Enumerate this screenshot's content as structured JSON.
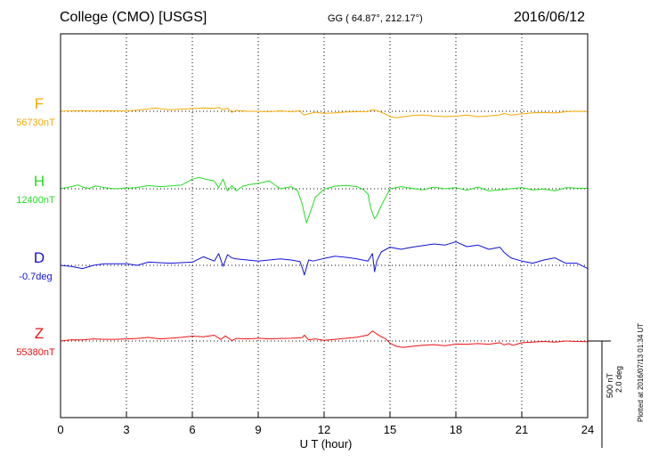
{
  "header": {
    "station": "College (CMO)  [USGS]",
    "geo": "GG ( 64.87°, 212.17°)",
    "date": "2016/06/12"
  },
  "side": {
    "scale_nt": "500 nT",
    "scale_deg": "2.0 deg",
    "plotted": "Plotted at 2016/07/13 01:34 UT"
  },
  "chart_data": {
    "type": "line",
    "xlabel": "U T (hour)",
    "xlim": [
      0,
      24
    ],
    "xticks": [
      0,
      3,
      6,
      9,
      12,
      15,
      18,
      21,
      24
    ],
    "grid": true,
    "series": [
      {
        "name": "F",
        "baseline_label": "56730nT",
        "color": "#f5a800",
        "baseline": 56730,
        "unit": "nT",
        "x": [
          0,
          0.5,
          1,
          1.5,
          2,
          2.5,
          3,
          3.5,
          4,
          4.3,
          4.6,
          5,
          5.5,
          6,
          6.5,
          7,
          7.2,
          7.4,
          7.6,
          7.8,
          8,
          8.5,
          9,
          9.5,
          10,
          10.5,
          10.9,
          11,
          11.1,
          11.3,
          11.6,
          12,
          12.5,
          13,
          13.5,
          14,
          14.2,
          14.3,
          14.5,
          14.8,
          15,
          15.3,
          15.6,
          16,
          16.5,
          17,
          17.5,
          18,
          18.5,
          19,
          19.5,
          20,
          20.2,
          20.5,
          21,
          21.5,
          22,
          22.5,
          23,
          23.5,
          24
        ],
        "values": [
          56730,
          56732,
          56733,
          56731,
          56733,
          56732,
          56731,
          56735,
          56741,
          56746,
          56741,
          56737,
          56740,
          56743,
          56745,
          56744,
          56748,
          56737,
          56745,
          56725,
          56734,
          56730,
          56730,
          56728,
          56732,
          56728,
          56733,
          56720,
          56712,
          56718,
          56726,
          56720,
          56723,
          56727,
          56728,
          56729,
          56738,
          56736,
          56730,
          56717,
          56705,
          56700,
          56704,
          56710,
          56713,
          56708,
          56705,
          56707,
          56712,
          56705,
          56708,
          56713,
          56720,
          56712,
          56718,
          56723,
          56725,
          56722,
          56728,
          56730,
          56729
        ]
      },
      {
        "name": "H",
        "baseline_label": "12400nT",
        "color": "#22dd22",
        "baseline": 12400,
        "unit": "nT",
        "x": [
          0,
          0.5,
          0.8,
          1,
          1.3,
          1.6,
          2,
          2.5,
          3,
          3.5,
          4,
          4.5,
          5,
          5.5,
          6,
          6.3,
          6.6,
          7,
          7.2,
          7.4,
          7.6,
          7.8,
          8,
          8.3,
          8.6,
          9,
          9.5,
          10,
          10.5,
          10.8,
          11,
          11.1,
          11.2,
          11.4,
          11.6,
          12,
          12.5,
          13,
          13.5,
          13.8,
          14,
          14.1,
          14.2,
          14.3,
          14.4,
          14.6,
          14.8,
          15,
          15.5,
          16,
          16.5,
          17,
          17.5,
          18,
          18.5,
          19,
          19.5,
          20,
          20.5,
          21,
          21.5,
          22,
          22.5,
          23,
          23.5,
          24
        ],
        "values": [
          12400,
          12410,
          12418,
          12408,
          12402,
          12413,
          12405,
          12400,
          12403,
          12406,
          12415,
          12410,
          12413,
          12417,
          12445,
          12453,
          12445,
          12436,
          12405,
          12445,
          12390,
          12415,
          12390,
          12412,
          12420,
          12425,
          12437,
          12400,
          12410,
          12390,
          12330,
          12283,
          12240,
          12300,
          12360,
          12398,
          12412,
          12416,
          12410,
          12395,
          12375,
          12320,
          12285,
          12260,
          12275,
          12320,
          12360,
          12400,
          12410,
          12402,
          12395,
          12408,
          12400,
          12405,
          12393,
          12408,
          12390,
          12395,
          12400,
          12405,
          12394,
          12399,
          12390,
          12405,
          12403,
          12402
        ]
      },
      {
        "name": "D",
        "baseline_label": "-0.7deg",
        "color": "#1010dd",
        "baseline": -0.7,
        "unit": "deg",
        "x": [
          0,
          0.5,
          1,
          1.5,
          2,
          3,
          3.5,
          4,
          5,
          6,
          6.5,
          7,
          7.2,
          7.4,
          7.6,
          7.8,
          8,
          8.5,
          9,
          9.5,
          10,
          10.5,
          10.9,
          11,
          11.1,
          11.3,
          11.5,
          12,
          12.5,
          13,
          13.5,
          14,
          14.2,
          14.3,
          14.4,
          14.6,
          15,
          15.5,
          16,
          17,
          17.5,
          18,
          18.5,
          19,
          19.5,
          20,
          20.2,
          20.5,
          21,
          21.5,
          22,
          22.5,
          23,
          23.5,
          24
        ],
        "values": [
          -0.7,
          -0.72,
          -0.76,
          -0.7,
          -0.67,
          -0.67,
          -0.7,
          -0.64,
          -0.66,
          -0.64,
          -0.54,
          -0.62,
          -0.48,
          -0.72,
          -0.5,
          -0.56,
          -0.58,
          -0.6,
          -0.62,
          -0.6,
          -0.58,
          -0.6,
          -0.63,
          -0.74,
          -0.88,
          -0.6,
          -0.62,
          -0.57,
          -0.53,
          -0.55,
          -0.58,
          -0.62,
          -0.48,
          -0.82,
          -0.62,
          -0.45,
          -0.36,
          -0.4,
          -0.36,
          -0.3,
          -0.32,
          -0.26,
          -0.35,
          -0.32,
          -0.4,
          -0.36,
          -0.46,
          -0.56,
          -0.62,
          -0.66,
          -0.6,
          -0.56,
          -0.66,
          -0.66,
          -0.76
        ]
      },
      {
        "name": "Z",
        "baseline_label": "55380nT",
        "color": "#ee1111",
        "baseline": 55380,
        "unit": "nT",
        "x": [
          0,
          0.5,
          1,
          1.5,
          2,
          2.5,
          3,
          3.5,
          4,
          4.5,
          5,
          5.5,
          6,
          6.5,
          7,
          7.3,
          7.5,
          7.8,
          8,
          8.5,
          9,
          9.5,
          10,
          10.5,
          11,
          11.1,
          11.3,
          11.6,
          12,
          12.5,
          13,
          13.5,
          14,
          14.2,
          14.3,
          14.5,
          14.8,
          15,
          15.3,
          15.6,
          16,
          16.5,
          17,
          17.5,
          18,
          18.5,
          19,
          19.5,
          20,
          20.2,
          20.4,
          20.6,
          20.8,
          21,
          21.5,
          22,
          22.5,
          23,
          23.5,
          24
        ],
        "values": [
          55380,
          55386,
          55385,
          55390,
          55388,
          55388,
          55390,
          55392,
          55397,
          55390,
          55393,
          55397,
          55403,
          55400,
          55407,
          55387,
          55404,
          55382,
          55392,
          55390,
          55393,
          55390,
          55392,
          55393,
          55396,
          55407,
          55386,
          55390,
          55383,
          55388,
          55393,
          55398,
          55408,
          55427,
          55420,
          55406,
          55390,
          55370,
          55355,
          55350,
          55355,
          55360,
          55363,
          55358,
          55366,
          55365,
          55368,
          55365,
          55372,
          55362,
          55368,
          55360,
          55366,
          55372,
          55375,
          55378,
          55375,
          55380,
          55378,
          55377
        ]
      }
    ]
  }
}
